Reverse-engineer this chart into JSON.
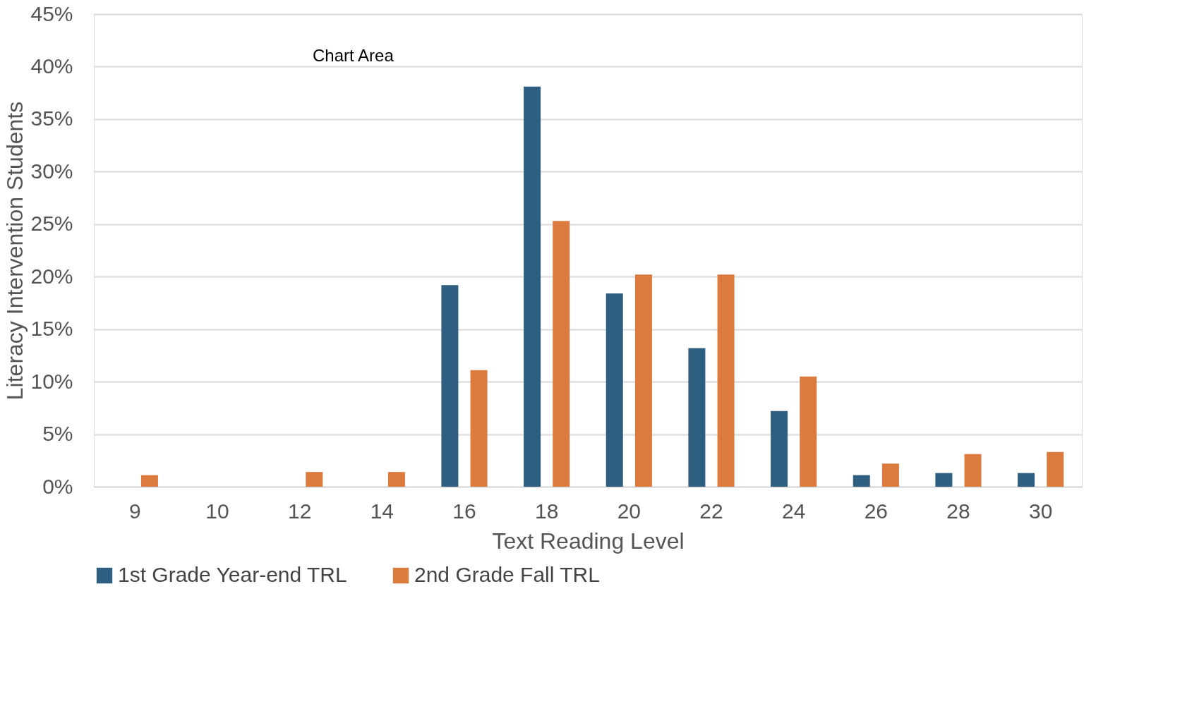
{
  "chart_data": {
    "type": "bar",
    "xlabel": "Text Reading Level",
    "ylabel": "Literacy Intervention Students",
    "categories": [
      "9",
      "10",
      "12",
      "14",
      "16",
      "18",
      "20",
      "22",
      "24",
      "26",
      "28",
      "30"
    ],
    "series": [
      {
        "name": "1st Grade Year-end TRL",
        "color": "#2e5f80",
        "values": [
          0,
          0,
          0,
          0,
          19.2,
          38.1,
          18.4,
          13.2,
          7.2,
          1.1,
          1.3,
          1.3
        ]
      },
      {
        "name": "2nd Grade Fall TRL",
        "color": "#dd7b3e",
        "values": [
          1.1,
          0,
          1.4,
          1.4,
          11.1,
          25.3,
          20.2,
          20.2,
          10.5,
          2.2,
          3.1,
          3.3
        ]
      }
    ],
    "ylim": [
      0,
      45
    ],
    "yticks": [
      {
        "value": 0,
        "label": "0%"
      },
      {
        "value": 5,
        "label": "5%"
      },
      {
        "value": 10,
        "label": "10%"
      },
      {
        "value": 15,
        "label": "15%"
      },
      {
        "value": 20,
        "label": "20%"
      },
      {
        "value": 25,
        "label": "25%"
      },
      {
        "value": 30,
        "label": "30%"
      },
      {
        "value": 35,
        "label": "35%"
      },
      {
        "value": 40,
        "label": "40%"
      },
      {
        "value": 45,
        "label": "45%"
      }
    ],
    "grid": "y",
    "legend": "bottom",
    "annotations": [
      "Chart Area"
    ]
  }
}
